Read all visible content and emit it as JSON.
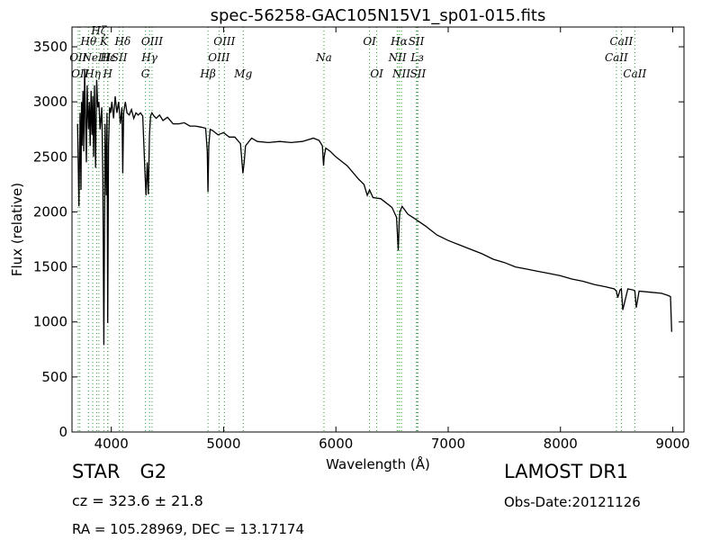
{
  "chart_data": {
    "type": "line",
    "title": "spec-56258-GAC105N15V1_sp01-015.fits",
    "xlabel": "Wavelength (Å)",
    "ylabel": "Flux (relative)",
    "xlim": [
      3650,
      9100
    ],
    "ylim": [
      0,
      3680
    ],
    "xticks": [
      4000,
      5000,
      6000,
      7000,
      8000,
      9000
    ],
    "yticks": [
      0,
      500,
      1000,
      1500,
      2000,
      2500,
      3000,
      3500
    ],
    "line_color": "#000000",
    "marker_color": "#2ca02c",
    "grid": false,
    "series": [
      {
        "x": [
          3700,
          3712,
          3722,
          3730,
          3735,
          3740,
          3748,
          3755,
          3762,
          3770,
          3778,
          3785,
          3790,
          3797,
          3805,
          3812,
          3820,
          3828,
          3835,
          3842,
          3850,
          3860,
          3870,
          3880,
          3890,
          3900,
          3915,
          3925,
          3934,
          3945,
          3955,
          3962,
          3968,
          3975,
          3985,
          3995,
          4005,
          4020,
          4035,
          4050,
          4065,
          4080,
          4095,
          4102,
          4110,
          4125,
          4140,
          4160,
          4180,
          4200,
          4220,
          4240,
          4260,
          4280,
          4300,
          4310,
          4320,
          4330,
          4340,
          4350,
          4362,
          4380,
          4400,
          4430,
          4460,
          4500,
          4550,
          4600,
          4650,
          4700,
          4750,
          4800,
          4840,
          4855,
          4861,
          4868,
          4880,
          4900,
          4950,
          5000,
          5050,
          5100,
          5150,
          5172,
          5183,
          5195,
          5250,
          5300,
          5400,
          5500,
          5600,
          5700,
          5800,
          5850,
          5880,
          5890,
          5896,
          5910,
          5950,
          6000,
          6100,
          6200,
          6250,
          6280,
          6300,
          6330,
          6400,
          6450,
          6500,
          6540,
          6555,
          6563,
          6570,
          6590,
          6640,
          6700,
          6800,
          6900,
          7000,
          7100,
          7200,
          7300,
          7400,
          7500,
          7600,
          7700,
          7800,
          7900,
          8000,
          8100,
          8200,
          8300,
          8400,
          8480,
          8498,
          8510,
          8530,
          8542,
          8555,
          8600,
          8650,
          8662,
          8675,
          8700,
          8800,
          8900,
          8960,
          8980,
          8990
        ],
        "y": [
          2800,
          2050,
          2900,
          2200,
          3000,
          2600,
          3100,
          2550,
          3300,
          2850,
          2450,
          3150,
          2950,
          2750,
          3000,
          2600,
          3100,
          2700,
          3050,
          2500,
          3150,
          2400,
          3200,
          2950,
          3000,
          2750,
          2950,
          2300,
          790,
          2800,
          2150,
          2900,
          990,
          2600,
          2950,
          2900,
          3000,
          2850,
          3050,
          2900,
          3000,
          2800,
          2950,
          2350,
          2900,
          3000,
          2900,
          2880,
          2930,
          2850,
          2900,
          2880,
          2900,
          2870,
          2350,
          2150,
          2450,
          2160,
          2700,
          2870,
          2900,
          2870,
          2850,
          2880,
          2830,
          2860,
          2800,
          2800,
          2810,
          2780,
          2780,
          2770,
          2760,
          2550,
          2180,
          2600,
          2750,
          2740,
          2700,
          2720,
          2680,
          2680,
          2620,
          2350,
          2450,
          2600,
          2670,
          2640,
          2630,
          2640,
          2630,
          2640,
          2670,
          2650,
          2600,
          2420,
          2500,
          2580,
          2550,
          2500,
          2420,
          2300,
          2250,
          2150,
          2200,
          2130,
          2120,
          2080,
          2040,
          1950,
          1650,
          1900,
          2000,
          2050,
          1980,
          1940,
          1870,
          1790,
          1740,
          1700,
          1660,
          1620,
          1570,
          1540,
          1500,
          1480,
          1460,
          1440,
          1420,
          1390,
          1370,
          1340,
          1320,
          1300,
          1280,
          1220,
          1290,
          1300,
          1110,
          1300,
          1290,
          1280,
          1130,
          1280,
          1270,
          1260,
          1240,
          1230,
          910
        ]
      }
    ],
    "lines": [
      {
        "x": 3705,
        "label": "OII",
        "row": 2
      },
      {
        "x": 3720,
        "label": "OII",
        "row": 3
      },
      {
        "x": 3797,
        "label": "Hθ",
        "row": 1
      },
      {
        "x": 3835,
        "label": "Hη",
        "row": 3
      },
      {
        "x": 3869,
        "label": "NeIII",
        "row": 2
      },
      {
        "x": 3889,
        "label": "Hζ",
        "row": 0
      },
      {
        "x": 3934,
        "label": "K",
        "row": 1
      },
      {
        "x": 3968,
        "label": "H",
        "row": 3
      },
      {
        "x": 3970,
        "label": "Hε",
        "row": 2
      },
      {
        "x": 4072,
        "label": "SII",
        "row": 2
      },
      {
        "x": 4102,
        "label": "Hδ",
        "row": 1
      },
      {
        "x": 4304,
        "label": "G",
        "row": 3
      },
      {
        "x": 4340,
        "label": "Hγ",
        "row": 2
      },
      {
        "x": 4363,
        "label": "OIII",
        "row": 1
      },
      {
        "x": 4861,
        "label": "Hβ",
        "row": 3
      },
      {
        "x": 4959,
        "label": "OIII",
        "row": 2
      },
      {
        "x": 5007,
        "label": "OIII",
        "row": 1
      },
      {
        "x": 5175,
        "label": "Mg",
        "row": 3
      },
      {
        "x": 5894,
        "label": "Na",
        "row": 2
      },
      {
        "x": 6300,
        "label": "OI",
        "row": 1
      },
      {
        "x": 6364,
        "label": "OI",
        "row": 3
      },
      {
        "x": 6548,
        "label": "NII",
        "row": 2
      },
      {
        "x": 6563,
        "label": "Hα",
        "row": 1
      },
      {
        "x": 6583,
        "label": "NII",
        "row": 3
      },
      {
        "x": 6716,
        "label": "SII",
        "row": 1
      },
      {
        "x": 6725,
        "label": "Lз",
        "row": 2
      },
      {
        "x": 6731,
        "label": "SII",
        "row": 3
      },
      {
        "x": 8498,
        "label": "CaII",
        "row": 2
      },
      {
        "x": 8542,
        "label": "CaII",
        "row": 1
      },
      {
        "x": 8662,
        "label": "CaII",
        "row": 3
      }
    ]
  },
  "info": {
    "class": "STAR",
    "subclass": "G2",
    "cz_text": "cz = 323.6 ± 21.8",
    "survey": "LAMOST DR1",
    "obs_date": "Obs-Date:20121126",
    "radec_text": "RA = 105.28969, DEC = 13.17174"
  }
}
